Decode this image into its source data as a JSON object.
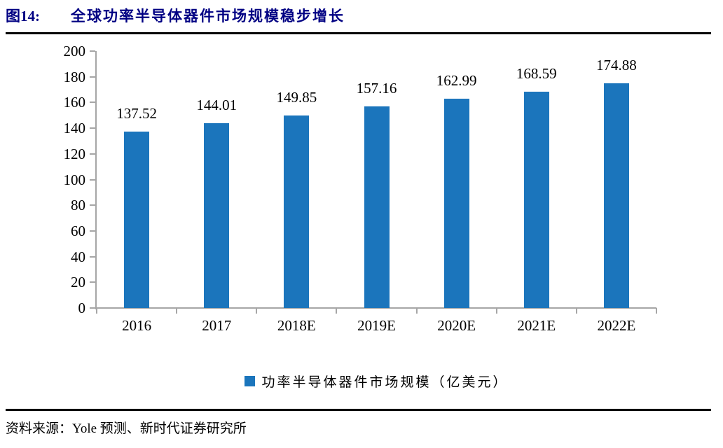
{
  "header": {
    "figure_label": "图14:",
    "title": "全球功率半导体器件市场规模稳步增长",
    "title_color": "#000083",
    "rule_color": "#000000"
  },
  "chart_data": {
    "type": "bar",
    "categories": [
      "2016",
      "2017",
      "2018E",
      "2019E",
      "2020E",
      "2021E",
      "2022E"
    ],
    "values": [
      137.52,
      144.01,
      149.85,
      157.16,
      162.99,
      168.59,
      174.88
    ],
    "value_labels": [
      "137.52",
      "144.01",
      "149.85",
      "157.16",
      "162.99",
      "168.59",
      "174.88"
    ],
    "title": "全球功率半导体器件市场规模稳步增长",
    "xlabel": "",
    "ylabel": "",
    "ylim": [
      0,
      200
    ],
    "ytick_step": 20,
    "grid": false,
    "legend_position": "bottom",
    "legend": [
      "功率半导体器件市场规模（亿美元）"
    ],
    "bar_color": "#1B75BC",
    "axis_color": "#A6A6A6",
    "label_color": "#000000"
  },
  "legend": {
    "swatch_icon": "square-icon",
    "label": "功率半导体器件市场规模（亿美元）"
  },
  "footer": {
    "source": "资料来源：Yole 预测、新时代证券研究所",
    "rule_color": "#000000"
  }
}
